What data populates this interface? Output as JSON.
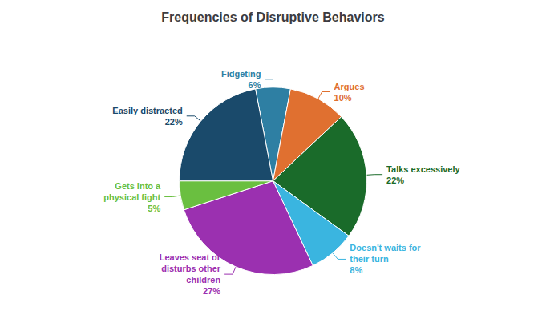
{
  "chart_data": {
    "type": "pie",
    "title": "Frequencies of Disruptive Behaviors",
    "categories": [
      "Fidgeting",
      "Argues",
      "Talks excessively",
      "Doesn't waits for\ntheir turn",
      "Leaves seat or\ndisturbs other\nchildren",
      "Gets into a\nphysical fight",
      "Easily distracted"
    ],
    "values": [
      6,
      10,
      22,
      8,
      27,
      5,
      22
    ],
    "value_labels": [
      "6%",
      "10%",
      "22%",
      "8%",
      "27%",
      "5%",
      "22%"
    ],
    "colors": [
      "#2e7fa3",
      "#e07030",
      "#1a6b2a",
      "#3ab5e0",
      "#9b30b0",
      "#6abf40",
      "#1a4a6b"
    ],
    "data_labels": true
  }
}
